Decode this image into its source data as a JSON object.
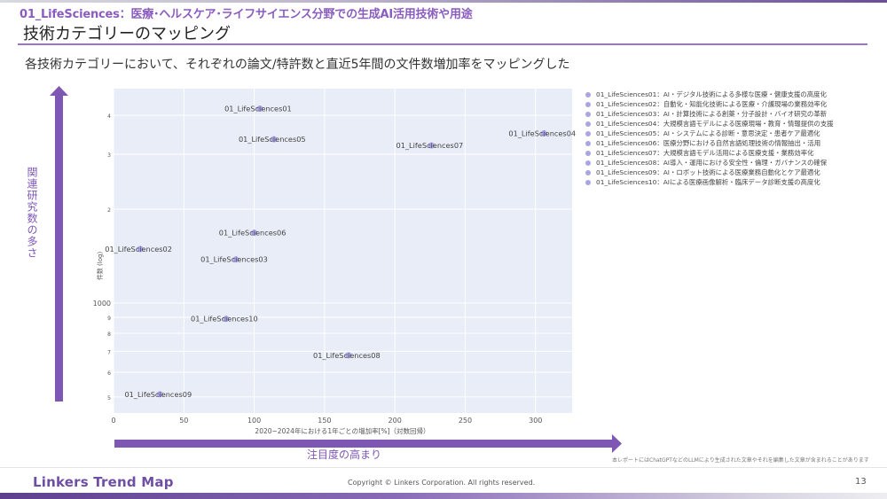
{
  "header": {
    "subtitle": "01_LifeSciences：医療･ヘルスケア･ライフサイエンス分野での生成AI活用技術や用途",
    "title": "技術カテゴリーのマッピング",
    "description": "各技術カテゴリーにおいて、それぞれの論文/特許数と直近5年間の文件数増加率をマッピングした"
  },
  "annotations": {
    "vertical_arrow_label": "関連研究数の多さ",
    "horizontal_arrow_label": "注目度の高まり",
    "disclaimer": "本レポートにはChatGPTなどのLLMにより生成された文章やそれを編集した文章が含まれることがあります"
  },
  "footer": {
    "brand": "Linkers Trend Map",
    "copyright": "Copyright © Linkers Corporation. All rights reserved.",
    "page_number": "13"
  },
  "colors": {
    "accent": "#7e57b5",
    "plot_bg": "#e8edf7",
    "marker": "#9d97e6",
    "marker_core": "#6a5fe0",
    "legend_dot": "#aaa6e2"
  },
  "chart_data": {
    "type": "scatter",
    "title": "",
    "xlabel": "2020−2024年における1年ごとの増加率[%]（対数回帰）",
    "ylabel": "件数 (log)",
    "x_ticks": [
      0,
      50,
      100,
      150,
      200,
      250,
      300
    ],
    "xlim": [
      0,
      326
    ],
    "y_scale": "log",
    "y_ticks": [
      {
        "value": 500,
        "label": "5"
      },
      {
        "value": 600,
        "label": "6"
      },
      {
        "value": 700,
        "label": "7"
      },
      {
        "value": 800,
        "label": "8"
      },
      {
        "value": 900,
        "label": "9"
      },
      {
        "value": 1000,
        "label": "1000"
      },
      {
        "value": 2000,
        "label": "2"
      },
      {
        "value": 3000,
        "label": "3"
      },
      {
        "value": 4000,
        "label": "4"
      }
    ],
    "ylim": [
      444,
      4870
    ],
    "grid": true,
    "legend_position": "right",
    "points": [
      {
        "name": "01_LifeSciences01",
        "x": 104,
        "y": 4200,
        "legend": "01_LifeSciences01：AI・デジタル技術による多様な医療・健康支援の高度化"
      },
      {
        "name": "01_LifeSciences02",
        "x": 19,
        "y": 1490,
        "legend": "01_LifeSciences02：自動化・知能化技術による医療・介護現場の業務効率化"
      },
      {
        "name": "01_LifeSciences03",
        "x": 87,
        "y": 1380,
        "legend": "01_LifeSciences03：AI・計算技術による創薬・分子設計・バイオ研究の革新"
      },
      {
        "name": "01_LifeSciences04",
        "x": 306,
        "y": 3500,
        "legend": "01_LifeSciences04：大規模言語モデルによる医療現場・教育・情報提供の支援"
      },
      {
        "name": "01_LifeSciences05",
        "x": 114,
        "y": 3350,
        "legend": "01_LifeSciences05：AI・システムによる診断・意思決定・患者ケア最適化"
      },
      {
        "name": "01_LifeSciences06",
        "x": 100,
        "y": 1680,
        "legend": "01_LifeSciences06：医療分野における自然言語処理技術の情報抽出・活用"
      },
      {
        "name": "01_LifeSciences07",
        "x": 226,
        "y": 3200,
        "legend": "01_LifeSciences07：大規模言語モデル活用による医療支援・業務効率化"
      },
      {
        "name": "01_LifeSciences08",
        "x": 167,
        "y": 680,
        "legend": "01_LifeSciences08：AI導入・運用における安全性・倫理・ガバナンスの確保"
      },
      {
        "name": "01_LifeSciences09",
        "x": 33,
        "y": 510,
        "legend": "01_LifeSciences09：AI・ロボット技術による医療業務自動化とケア最適化"
      },
      {
        "name": "01_LifeSciences10",
        "x": 80,
        "y": 890,
        "legend": "01_LifeSciences10：AIによる医療画像解析・臨床データ診断支援の高度化"
      }
    ]
  }
}
